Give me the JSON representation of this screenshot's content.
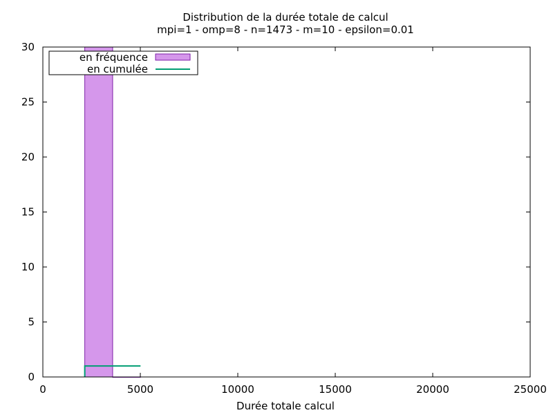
{
  "chart_data": {
    "type": "bar",
    "title": "Distribution de la durée totale de calcul",
    "subtitle": "mpi=1 - omp=8 - n=1473 - m=10 - epsilon=0.01",
    "xlabel": "Durée totale calcul",
    "ylabel": "",
    "xlim": [
      0,
      25000
    ],
    "ylim": [
      0,
      30
    ],
    "x_ticks": [
      0,
      5000,
      10000,
      15000,
      20000,
      25000
    ],
    "y_ticks": [
      0,
      5,
      10,
      15,
      20,
      25,
      30
    ],
    "grid": false,
    "legend_position": "top-left",
    "series": [
      {
        "name": "en fréquence",
        "kind": "histogram",
        "color": "#d597eb",
        "edge_color": "#7e1fa8",
        "bins": [
          {
            "x0": 2150,
            "x1": 3580,
            "value": 30
          },
          {
            "x0": 3580,
            "x1": 5010,
            "value": 0
          }
        ]
      },
      {
        "name": "en cumulée",
        "kind": "step",
        "color": "#009e73",
        "points": [
          {
            "x": 2150,
            "y": 0
          },
          {
            "x": 2150,
            "y": 1
          },
          {
            "x": 5010,
            "y": 1
          }
        ]
      }
    ]
  }
}
